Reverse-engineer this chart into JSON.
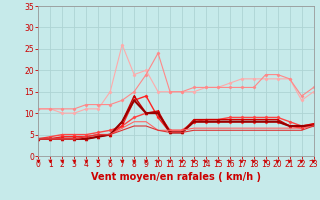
{
  "xlabel": "Vent moyen/en rafales ( km/h )",
  "xlim": [
    0,
    23
  ],
  "ylim": [
    0,
    35
  ],
  "yticks": [
    0,
    5,
    10,
    15,
    20,
    25,
    30,
    35
  ],
  "xticks": [
    0,
    1,
    2,
    3,
    4,
    5,
    6,
    7,
    8,
    9,
    10,
    11,
    12,
    13,
    14,
    15,
    16,
    17,
    18,
    19,
    20,
    21,
    22,
    23
  ],
  "background_color": "#c6eaea",
  "grid_color": "#aed4d4",
  "series": [
    {
      "y": [
        11,
        11,
        10,
        10,
        11,
        11,
        15,
        26,
        19,
        20,
        15,
        15,
        15,
        15,
        16,
        16,
        17,
        18,
        18,
        18,
        18,
        18,
        13,
        15
      ],
      "color": "#ffaaaa",
      "lw": 0.8,
      "marker": "D",
      "ms": 1.5
    },
    {
      "y": [
        11,
        11,
        11,
        11,
        12,
        12,
        12,
        13,
        15,
        19,
        24,
        15,
        15,
        16,
        16,
        16,
        16,
        16,
        16,
        19,
        19,
        18,
        14,
        16
      ],
      "color": "#ff8888",
      "lw": 0.8,
      "marker": "D",
      "ms": 1.5
    },
    {
      "y": [
        4,
        4.5,
        5,
        5,
        5,
        5.5,
        6,
        7,
        9,
        10,
        10,
        6,
        6,
        8,
        8.5,
        8.5,
        9,
        9,
        9,
        9,
        9,
        8,
        7,
        7.5
      ],
      "color": "#ff4444",
      "lw": 1.0,
      "marker": "D",
      "ms": 1.5
    },
    {
      "y": [
        4,
        4,
        4.5,
        4.5,
        4.5,
        5,
        5,
        7,
        13,
        14,
        9,
        5.5,
        5.5,
        8,
        8,
        8,
        8,
        8,
        8,
        8,
        8,
        7,
        6.5,
        7.5
      ],
      "color": "#ff2222",
      "lw": 1.0,
      "marker": "D",
      "ms": 1.5
    },
    {
      "y": [
        4,
        4,
        4,
        4,
        4,
        4.5,
        5,
        8,
        14,
        10,
        10.5,
        5.5,
        5.5,
        8.5,
        8.5,
        8.5,
        8.5,
        8.5,
        8.5,
        8.5,
        8.5,
        7,
        7,
        7.5
      ],
      "color": "#cc0000",
      "lw": 1.0,
      "marker": "^",
      "ms": 2.0
    },
    {
      "y": [
        4,
        4,
        4,
        4,
        4,
        4.5,
        5,
        8,
        13,
        10,
        10,
        5.5,
        5.5,
        8,
        8,
        8,
        8,
        8,
        8,
        8,
        8,
        7,
        7,
        7
      ],
      "color": "#990000",
      "lw": 1.5,
      "marker": null
    },
    {
      "y": [
        4,
        4,
        4,
        4,
        4.5,
        5,
        5,
        6.5,
        8,
        8,
        6,
        6,
        6,
        6.5,
        6.5,
        6.5,
        6.5,
        6.5,
        6.5,
        6.5,
        6.5,
        6.5,
        6.5,
        7
      ],
      "color": "#ff6666",
      "lw": 0.8,
      "marker": null
    },
    {
      "y": [
        4,
        4,
        4,
        4,
        4.5,
        5,
        5,
        6,
        7,
        7,
        6,
        5.5,
        5.5,
        6,
        6,
        6,
        6,
        6,
        6,
        6,
        6,
        6,
        6,
        7
      ],
      "color": "#dd3333",
      "lw": 0.8,
      "marker": null
    }
  ],
  "arrow_color": "#cc0000",
  "tick_label_color": "#cc0000",
  "axis_label_color": "#cc0000",
  "tick_fontsize": 5.5,
  "xlabel_fontsize": 7
}
